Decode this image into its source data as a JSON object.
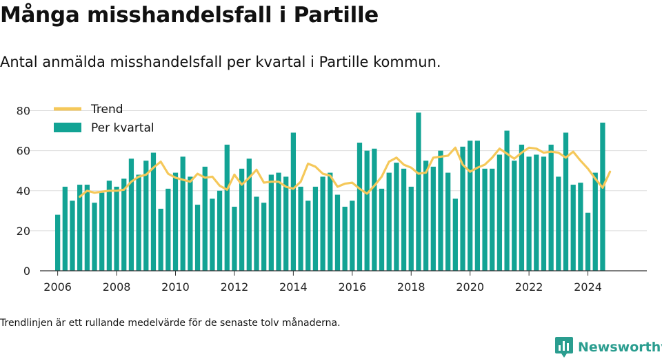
{
  "title": "Många misshandelsfall i Partille",
  "subtitle": "Antal anmälda misshandelsfall per kvartal i Partille kommun.",
  "note": "Trendlinjen är ett rullande medelvärde för de senaste tolv månaderna.",
  "brand": {
    "name": "Newsworthy",
    "color": "#2a9d8f",
    "icon": "bar-chart-logo-icon"
  },
  "colors": {
    "bars": "#12a394",
    "trend": "#f5c85a",
    "grid": "#dddddd",
    "axis": "#333333"
  },
  "chart_data": {
    "type": "bar",
    "xlabel": "",
    "ylabel": "",
    "ylim": [
      0,
      85
    ],
    "xlim": [
      2005.4,
      2026.0
    ],
    "yticks": [
      0,
      20,
      40,
      60,
      80
    ],
    "xticks": [
      2006,
      2008,
      2010,
      2012,
      2014,
      2016,
      2018,
      2020,
      2022,
      2024
    ],
    "grid": "horizontal",
    "legend": "top-left",
    "series": [
      {
        "name": "Per kvartal",
        "type": "bar",
        "x_start": 2006.0,
        "step": 0.25,
        "values": [
          28,
          42,
          35,
          43,
          43,
          34,
          39,
          45,
          42,
          46,
          56,
          48,
          55,
          59,
          31,
          41,
          49,
          57,
          47,
          33,
          52,
          36,
          40,
          63,
          32,
          51,
          56,
          37,
          34,
          48,
          49,
          47,
          69,
          42,
          35,
          42,
          47,
          49,
          38,
          32,
          35,
          64,
          60,
          61,
          41,
          49,
          54,
          51,
          42,
          79,
          55,
          52,
          60,
          49,
          36,
          62,
          65,
          65,
          51,
          51,
          58,
          70,
          55,
          63,
          57,
          58,
          57,
          63,
          47,
          69,
          43,
          44,
          29,
          49,
          74
        ]
      },
      {
        "name": "Trend",
        "type": "line",
        "x_start": 2006.75,
        "step": 0.25,
        "values": [
          37,
          40,
          39,
          39.5,
          40,
          40,
          40.5,
          44.5,
          47,
          48,
          51.5,
          54.5,
          48.5,
          46.5,
          45.5,
          44.5,
          48.5,
          46.5,
          47,
          42.5,
          40.5,
          48,
          43,
          46.5,
          50.5,
          44,
          44.5,
          44.5,
          42,
          41,
          44.5,
          53.5,
          52,
          48.5,
          47.5,
          42,
          43.5,
          44,
          41,
          38.5,
          42.5,
          47,
          54.5,
          56.5,
          53,
          51.5,
          48.5,
          49,
          56.5,
          57,
          57.5,
          61.5,
          53,
          49.5,
          51.5,
          53,
          56.5,
          61,
          58.5,
          56,
          59,
          61.5,
          61,
          59,
          59.5,
          59,
          56.5,
          59.5,
          55,
          51,
          46,
          41.5,
          49.5
        ]
      }
    ]
  }
}
